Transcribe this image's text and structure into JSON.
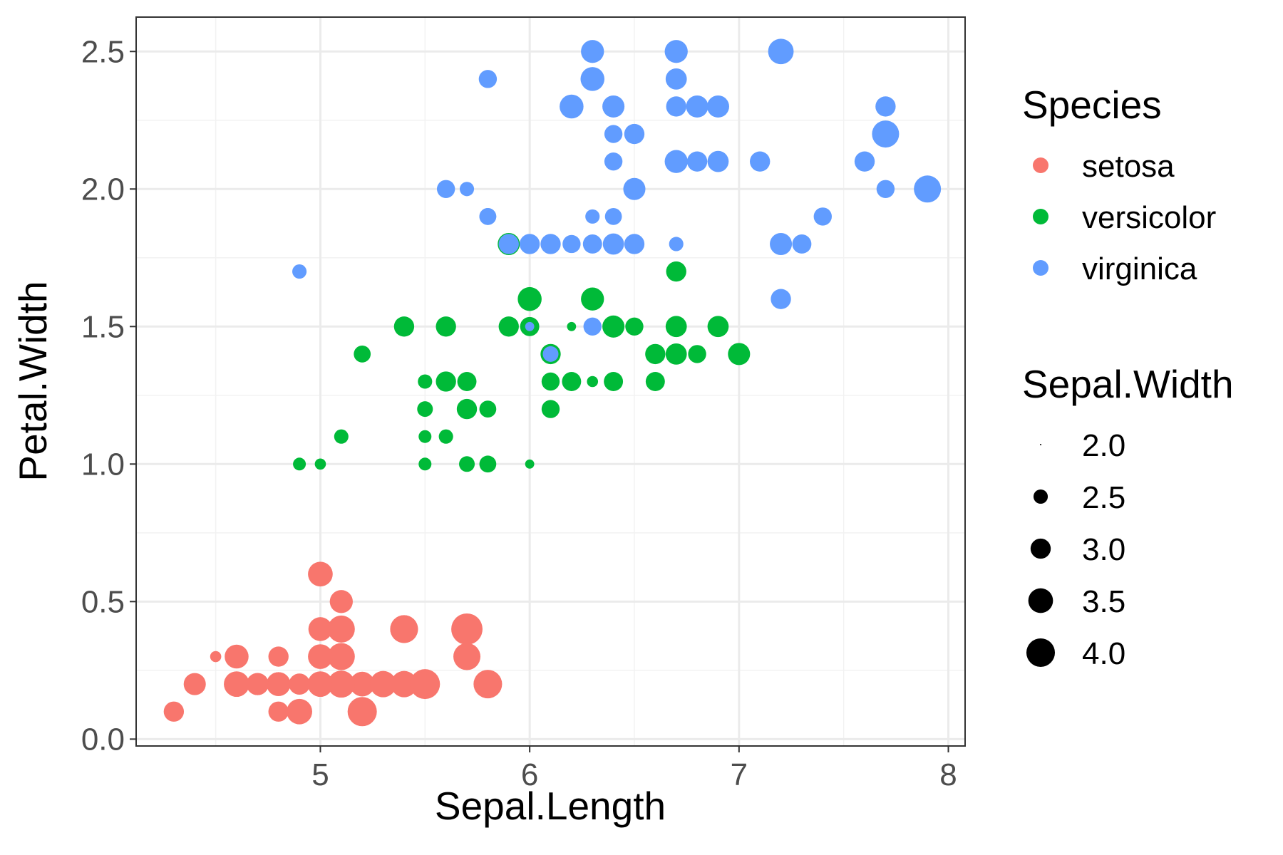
{
  "chart_data": {
    "type": "scatter",
    "title": "",
    "xlabel": "Sepal.Length",
    "ylabel": "Petal.Width",
    "xlim": [
      4.12,
      8.08
    ],
    "ylim": [
      -0.025,
      2.625
    ],
    "x_ticks": [
      5,
      6,
      7,
      8
    ],
    "x_minor_ticks": [
      4.5,
      5.5,
      6.5,
      7.5
    ],
    "y_ticks": [
      0.0,
      0.5,
      1.0,
      1.5,
      2.0,
      2.5
    ],
    "y_minor_ticks": [
      0.25,
      0.75,
      1.25,
      1.75,
      2.25
    ],
    "x_tick_labels": [
      "5",
      "6",
      "7",
      "8"
    ],
    "y_tick_labels": [
      "0.0",
      "0.5",
      "1.0",
      "1.5",
      "2.0",
      "2.5"
    ],
    "grid": true,
    "color_legend": {
      "title": "Species",
      "placement": "right",
      "entries": [
        {
          "label": "setosa",
          "color": "#F8766D"
        },
        {
          "label": "versicolor",
          "color": "#00BA38"
        },
        {
          "label": "virginica",
          "color": "#619CFF"
        }
      ]
    },
    "size_legend": {
      "title": "Sepal.Width",
      "placement": "right",
      "entries": [
        {
          "label": "2.0",
          "value": 2.0
        },
        {
          "label": "2.5",
          "value": 2.5
        },
        {
          "label": "3.0",
          "value": 3.0
        },
        {
          "label": "3.5",
          "value": 3.5
        },
        {
          "label": "4.0",
          "value": 4.0
        }
      ],
      "range": [
        2.0,
        4.4
      ]
    },
    "series": [
      {
        "name": "setosa",
        "color": "#F8766D",
        "points": [
          [
            5.1,
            0.2,
            3.5
          ],
          [
            4.9,
            0.2,
            3.0
          ],
          [
            4.7,
            0.2,
            3.2
          ],
          [
            4.6,
            0.2,
            3.1
          ],
          [
            5.0,
            0.2,
            3.6
          ],
          [
            5.4,
            0.4,
            3.9
          ],
          [
            4.6,
            0.3,
            3.4
          ],
          [
            5.0,
            0.2,
            3.4
          ],
          [
            4.4,
            0.2,
            2.9
          ],
          [
            4.9,
            0.1,
            3.1
          ],
          [
            5.4,
            0.2,
            3.7
          ],
          [
            4.8,
            0.2,
            3.4
          ],
          [
            4.8,
            0.1,
            3.0
          ],
          [
            4.3,
            0.1,
            3.0
          ],
          [
            5.8,
            0.2,
            4.0
          ],
          [
            5.7,
            0.4,
            4.4
          ],
          [
            5.4,
            0.4,
            3.9
          ],
          [
            5.1,
            0.3,
            3.5
          ],
          [
            5.7,
            0.3,
            3.8
          ],
          [
            5.1,
            0.3,
            3.8
          ],
          [
            5.4,
            0.2,
            3.4
          ],
          [
            5.1,
            0.4,
            3.7
          ],
          [
            4.6,
            0.2,
            3.6
          ],
          [
            5.1,
            0.5,
            3.3
          ],
          [
            4.8,
            0.2,
            3.4
          ],
          [
            5.0,
            0.2,
            3.0
          ],
          [
            5.0,
            0.4,
            3.4
          ],
          [
            5.2,
            0.2,
            3.5
          ],
          [
            5.2,
            0.2,
            3.4
          ],
          [
            4.7,
            0.2,
            3.2
          ],
          [
            4.8,
            0.2,
            3.1
          ],
          [
            5.4,
            0.4,
            3.4
          ],
          [
            5.2,
            0.1,
            4.1
          ],
          [
            5.5,
            0.2,
            4.2
          ],
          [
            4.9,
            0.2,
            3.1
          ],
          [
            5.0,
            0.2,
            3.2
          ],
          [
            5.5,
            0.2,
            3.5
          ],
          [
            4.9,
            0.1,
            3.6
          ],
          [
            4.4,
            0.2,
            3.0
          ],
          [
            5.1,
            0.2,
            3.4
          ],
          [
            5.0,
            0.3,
            3.5
          ],
          [
            4.5,
            0.3,
            2.3
          ],
          [
            4.4,
            0.2,
            3.2
          ],
          [
            5.0,
            0.6,
            3.5
          ],
          [
            5.1,
            0.4,
            3.8
          ],
          [
            4.8,
            0.3,
            3.0
          ],
          [
            5.1,
            0.2,
            3.8
          ],
          [
            4.6,
            0.2,
            3.2
          ],
          [
            5.3,
            0.2,
            3.7
          ],
          [
            5.0,
            0.2,
            3.3
          ]
        ]
      },
      {
        "name": "versicolor",
        "color": "#00BA38",
        "points": [
          [
            7.0,
            1.4,
            3.2
          ],
          [
            6.4,
            1.5,
            3.2
          ],
          [
            6.9,
            1.5,
            3.1
          ],
          [
            5.5,
            1.3,
            2.3
          ],
          [
            6.5,
            1.5,
            2.8
          ],
          [
            5.7,
            1.3,
            2.8
          ],
          [
            6.3,
            1.6,
            3.3
          ],
          [
            4.9,
            1.0,
            2.4
          ],
          [
            6.6,
            1.3,
            2.9
          ],
          [
            5.2,
            1.4,
            2.7
          ],
          [
            5.0,
            1.0,
            2.0
          ],
          [
            5.9,
            1.5,
            3.0
          ],
          [
            6.0,
            1.0,
            2.2
          ],
          [
            6.1,
            1.4,
            2.9
          ],
          [
            5.6,
            1.3,
            2.9
          ],
          [
            6.7,
            1.4,
            3.1
          ],
          [
            5.6,
            1.5,
            3.0
          ],
          [
            5.8,
            1.0,
            2.7
          ],
          [
            6.2,
            1.5,
            2.2
          ],
          [
            5.6,
            1.1,
            2.5
          ],
          [
            5.9,
            1.8,
            3.2
          ],
          [
            6.1,
            1.3,
            2.8
          ],
          [
            6.3,
            1.5,
            2.5
          ],
          [
            6.1,
            1.2,
            2.8
          ],
          [
            6.4,
            1.3,
            2.9
          ],
          [
            6.6,
            1.4,
            3.0
          ],
          [
            6.8,
            1.4,
            2.8
          ],
          [
            6.7,
            1.7,
            3.0
          ],
          [
            6.0,
            1.5,
            2.9
          ],
          [
            5.7,
            1.0,
            2.6
          ],
          [
            5.5,
            1.1,
            2.4
          ],
          [
            5.5,
            1.0,
            2.4
          ],
          [
            5.8,
            1.2,
            2.7
          ],
          [
            6.0,
            1.6,
            2.7
          ],
          [
            5.4,
            1.5,
            3.0
          ],
          [
            6.0,
            1.6,
            3.4
          ],
          [
            6.7,
            1.5,
            3.1
          ],
          [
            6.3,
            1.3,
            2.3
          ],
          [
            5.6,
            1.3,
            3.0
          ],
          [
            5.5,
            1.3,
            2.5
          ],
          [
            5.5,
            1.2,
            2.6
          ],
          [
            6.1,
            1.4,
            3.0
          ],
          [
            5.8,
            1.2,
            2.6
          ],
          [
            5.0,
            1.0,
            2.3
          ],
          [
            5.6,
            1.3,
            2.7
          ],
          [
            5.7,
            1.2,
            3.0
          ],
          [
            5.7,
            1.3,
            2.9
          ],
          [
            6.2,
            1.3,
            2.9
          ],
          [
            5.1,
            1.1,
            2.5
          ],
          [
            5.7,
            1.3,
            2.8
          ]
        ]
      },
      {
        "name": "virginica",
        "color": "#619CFF",
        "points": [
          [
            6.3,
            2.5,
            3.3
          ],
          [
            5.8,
            1.9,
            2.7
          ],
          [
            7.1,
            2.1,
            3.0
          ],
          [
            6.3,
            1.8,
            2.9
          ],
          [
            6.5,
            2.2,
            3.0
          ],
          [
            7.6,
            2.1,
            3.0
          ],
          [
            4.9,
            1.7,
            2.5
          ],
          [
            7.3,
            1.8,
            2.9
          ],
          [
            6.7,
            1.8,
            2.5
          ],
          [
            7.2,
            2.5,
            3.6
          ],
          [
            6.5,
            2.0,
            3.2
          ],
          [
            6.4,
            1.9,
            2.7
          ],
          [
            6.8,
            2.1,
            3.0
          ],
          [
            5.7,
            2.0,
            2.5
          ],
          [
            5.8,
            2.4,
            2.8
          ],
          [
            6.4,
            2.3,
            3.2
          ],
          [
            6.5,
            1.8,
            3.0
          ],
          [
            7.7,
            2.2,
            3.8
          ],
          [
            7.7,
            2.3,
            2.6
          ],
          [
            6.0,
            1.5,
            2.2
          ],
          [
            6.9,
            2.3,
            3.2
          ],
          [
            5.6,
            2.0,
            2.8
          ],
          [
            7.7,
            2.0,
            2.8
          ],
          [
            6.3,
            1.8,
            2.7
          ],
          [
            6.7,
            2.1,
            3.3
          ],
          [
            7.2,
            1.8,
            3.2
          ],
          [
            6.2,
            1.8,
            2.8
          ],
          [
            6.1,
            1.8,
            3.0
          ],
          [
            6.4,
            2.1,
            2.8
          ],
          [
            7.2,
            1.6,
            3.0
          ],
          [
            7.4,
            1.9,
            2.8
          ],
          [
            7.9,
            2.0,
            3.8
          ],
          [
            6.4,
            2.2,
            2.8
          ],
          [
            6.3,
            1.5,
            2.8
          ],
          [
            6.1,
            1.4,
            2.6
          ],
          [
            7.7,
            2.3,
            3.0
          ],
          [
            6.3,
            2.4,
            3.4
          ],
          [
            6.4,
            1.8,
            3.1
          ],
          [
            6.0,
            1.8,
            3.0
          ],
          [
            6.9,
            2.1,
            3.1
          ],
          [
            6.7,
            2.4,
            3.1
          ],
          [
            6.9,
            2.3,
            3.1
          ],
          [
            5.8,
            1.9,
            2.7
          ],
          [
            6.8,
            2.3,
            3.2
          ],
          [
            6.7,
            2.5,
            3.3
          ],
          [
            6.7,
            2.3,
            3.0
          ],
          [
            6.3,
            1.9,
            2.5
          ],
          [
            6.5,
            2.0,
            3.0
          ],
          [
            6.2,
            2.3,
            3.4
          ],
          [
            5.9,
            1.8,
            3.0
          ]
        ]
      }
    ]
  }
}
